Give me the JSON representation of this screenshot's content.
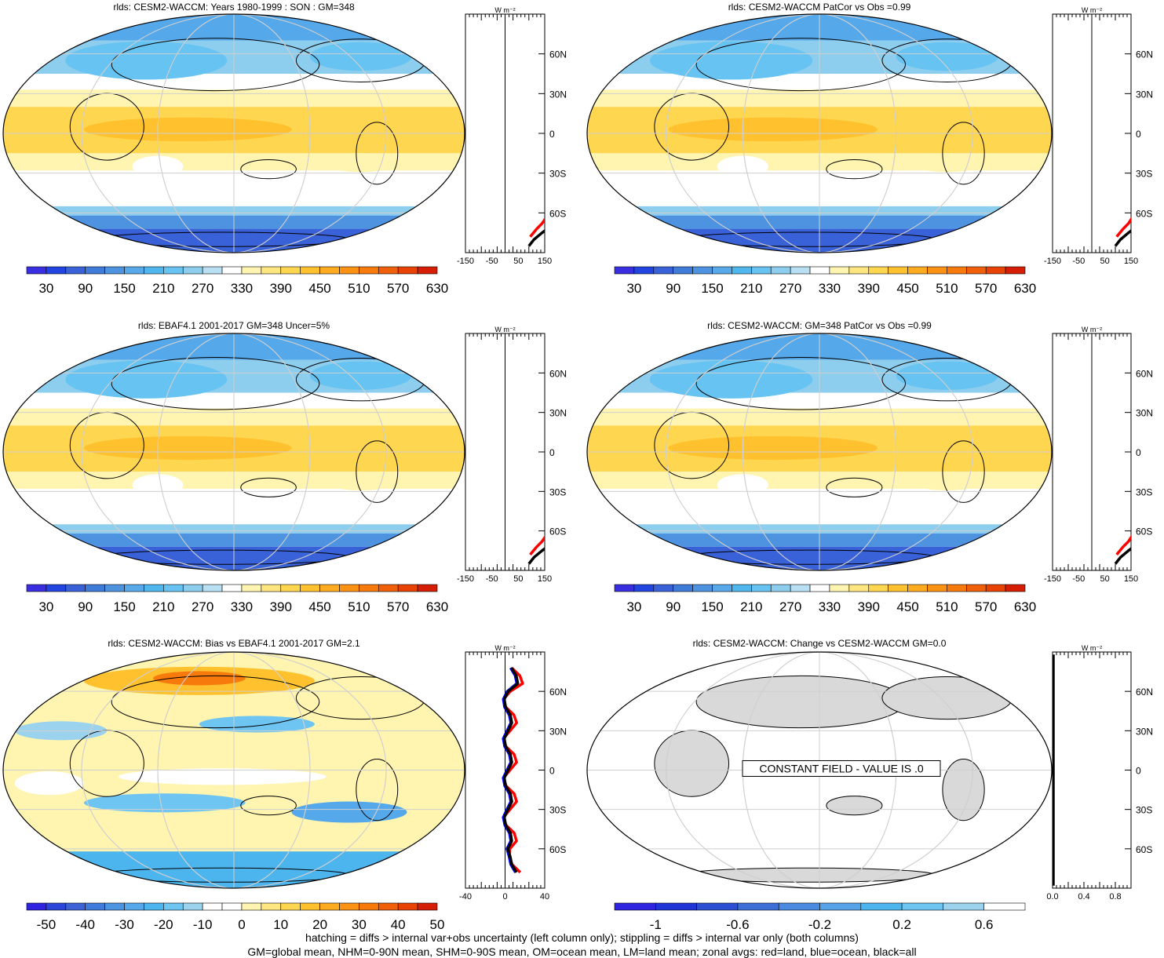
{
  "footer": {
    "line1": "hatching = diffs > internal var+obs uncertainty (left column only); stippling = diffs > internal var only (both columns)",
    "line2": "GM=global mean, NHM=0-90N mean, SHM=0-90S mean, OM=ocean mean, LM=land mean; zonal avgs: red=land, blue=ocean, black=all"
  },
  "colors": {
    "land_line": "#ff0000",
    "ocean_line": "#0000ff",
    "all_line": "#000000",
    "constant_land": "#d9d9d9"
  },
  "lat_labels": [
    "60N",
    "30N",
    "0",
    "30S",
    "60S"
  ],
  "unit_label": "W m⁻²",
  "chart_data": [
    {
      "type": "heatmap",
      "title": "rlds: CESM2-WACCM: Years 1980-1999 : SON : GM=348",
      "colorbar": {
        "labels": [
          "30",
          "90",
          "150",
          "210",
          "270",
          "330",
          "390",
          "450",
          "510",
          "570",
          "630"
        ],
        "nbins": 21,
        "scale": "abs"
      },
      "zonal": {
        "xticks": [
          "-150",
          "-50",
          "50",
          "150"
        ],
        "xlim": [
          -150,
          150
        ]
      }
    },
    {
      "type": "heatmap",
      "title": "rlds: CESM2-WACCM PatCor vs Obs =0.99",
      "colorbar": {
        "labels": [
          "30",
          "90",
          "150",
          "210",
          "270",
          "330",
          "390",
          "450",
          "510",
          "570",
          "630"
        ],
        "nbins": 21,
        "scale": "abs"
      },
      "zonal": {
        "xticks": [
          "-150",
          "-50",
          "50",
          "150"
        ],
        "xlim": [
          -150,
          150
        ]
      }
    },
    {
      "type": "heatmap",
      "title": "rlds: EBAF4.1 2001-2017 GM=348 Uncer=5%",
      "colorbar": {
        "labels": [
          "30",
          "90",
          "150",
          "210",
          "270",
          "330",
          "390",
          "450",
          "510",
          "570",
          "630"
        ],
        "nbins": 21,
        "scale": "abs"
      },
      "zonal": {
        "xticks": [
          "-150",
          "-50",
          "50",
          "150"
        ],
        "xlim": [
          -150,
          150
        ]
      }
    },
    {
      "type": "heatmap",
      "title": "rlds: CESM2-WACCM: GM=348 PatCor vs Obs =0.99",
      "colorbar": {
        "labels": [
          "30",
          "90",
          "150",
          "210",
          "270",
          "330",
          "390",
          "450",
          "510",
          "570",
          "630"
        ],
        "nbins": 21,
        "scale": "abs"
      },
      "zonal": {
        "xticks": [
          "-150",
          "-50",
          "50",
          "150"
        ],
        "xlim": [
          -150,
          150
        ]
      }
    },
    {
      "type": "heatmap",
      "title": "rlds: CESM2-WACCM: Bias vs EBAF4.1 2001-2017  GM=2.1",
      "colorbar": {
        "labels": [
          "-50",
          "-40",
          "-30",
          "-20",
          "-10",
          "0",
          "10",
          "20",
          "30",
          "40",
          "50"
        ],
        "nbins": 21,
        "scale": "bias"
      },
      "zonal": {
        "xticks": [
          "-40",
          "0",
          "40"
        ],
        "xlim": [
          -40,
          40
        ]
      }
    },
    {
      "type": "heatmap",
      "title": "rlds: CESM2-WACCM: Change vs CESM2-WACCM GM=0.0",
      "colorbar": {
        "labels": [
          "-1",
          "-0.6",
          "-0.2",
          "0.2",
          "0.6"
        ],
        "nbins": 10,
        "scale": "change"
      },
      "zonal": {
        "xticks": [
          "0.0",
          "0.4",
          "0.8"
        ],
        "xlim": [
          0,
          1
        ]
      },
      "annotation": "CONSTANT FIELD - VALUE IS .0"
    }
  ]
}
